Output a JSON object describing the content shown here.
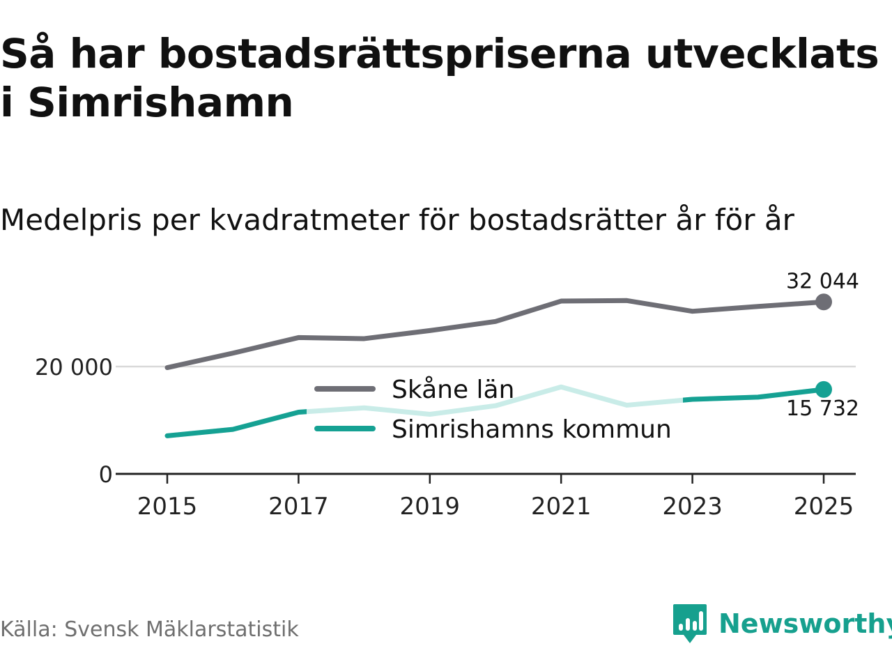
{
  "title": "Så har bostadsrättspriserna utvecklats i Simrishamn",
  "subtitle": "Medelpris per kvadratmeter för bostadsrätter år för år",
  "source": "Källa: Svensk Mäklarstatistik",
  "brand": {
    "name": "Newsworthy",
    "logo_icon": "newsworthy-chart-bubble-icon"
  },
  "colors": {
    "skane": "#6e6e75",
    "simrishamn": "#15a193",
    "simrishamn_faded": "#c9ece8",
    "grid": "#d9d9d9",
    "axis": "#222222"
  },
  "chart_data": {
    "type": "line",
    "title": "Så har bostadsrättspriserna utvecklats i Simrishamn",
    "subtitle": "Medelpris per kvadratmeter för bostadsrätter år för år",
    "xlabel": "",
    "ylabel": "",
    "x": [
      2015,
      2016,
      2017,
      2018,
      2019,
      2020,
      2021,
      2022,
      2023,
      2024,
      2025
    ],
    "xlim": [
      2014.5,
      2025.5
    ],
    "xticks": [
      2015,
      2017,
      2019,
      2021,
      2023,
      2025
    ],
    "xtick_labels": [
      "2015",
      "2017",
      "2019",
      "2021",
      "2023",
      "2025"
    ],
    "ylim": [
      0,
      36000
    ],
    "yticks": [
      0,
      20000
    ],
    "ytick_labels": [
      "0",
      "20 000"
    ],
    "gridlines": [
      20000
    ],
    "legend_position": "center",
    "series": [
      {
        "name": "Skåne län",
        "values": [
          19800,
          22500,
          25400,
          25200,
          26700,
          28400,
          32200,
          32300,
          30300,
          31200,
          32044
        ],
        "end_label": "32 044",
        "color_key": "skane"
      },
      {
        "name": "Simrishamns kommun",
        "values": [
          7100,
          8300,
          11500,
          12300,
          11100,
          12700,
          16200,
          12800,
          13900,
          14300,
          15732
        ],
        "end_label": "15 732",
        "color_key": "simrishamn"
      }
    ]
  }
}
